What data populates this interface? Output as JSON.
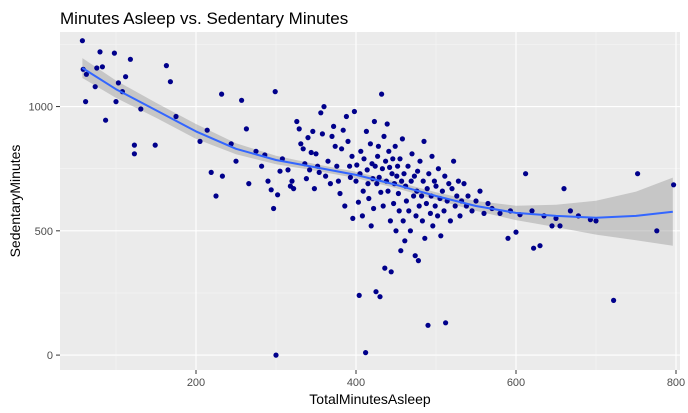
{
  "chart_data": {
    "type": "scatter",
    "title": "Minutes Asleep vs. Sedentary Minutes",
    "xlabel": "TotalMinutesAsleep",
    "ylabel": "SedentaryMinutes",
    "xlim": [
      30,
      805
    ],
    "ylim": [
      -60,
      1300
    ],
    "x_ticks": [
      200,
      400,
      600,
      800
    ],
    "y_ticks": [
      0,
      500,
      1000
    ],
    "x_tick_labels": [
      "200",
      "400",
      "600",
      "800"
    ],
    "y_tick_labels": [
      "0",
      "500",
      "1000"
    ],
    "grid": true,
    "legend": "none",
    "colors": {
      "panel_background": "#ebebeb",
      "grid_major": "#ffffff",
      "grid_minor": "#f5f5f5",
      "points": "#00008b",
      "smooth_line": "#3366ff",
      "confidence_band": "#999999",
      "tick_label": "#4d4d4d",
      "tick_mark": "#333333"
    },
    "smooth": {
      "method": "loess",
      "x": [
        58,
        100,
        150,
        200,
        250,
        300,
        350,
        400,
        450,
        500,
        550,
        600,
        650,
        700,
        750,
        796
      ],
      "y": [
        1155,
        1070,
        985,
        900,
        830,
        785,
        755,
        725,
        685,
        640,
        600,
        572,
        560,
        553,
        560,
        577
      ],
      "lower": [
        1115,
        1035,
        955,
        870,
        808,
        768,
        742,
        712,
        672,
        625,
        580,
        543,
        515,
        485,
        462,
        440
      ],
      "upper": [
        1195,
        1105,
        1015,
        930,
        852,
        802,
        768,
        738,
        698,
        655,
        620,
        601,
        605,
        621,
        658,
        714
      ]
    },
    "points": [
      [
        58,
        1265
      ],
      [
        59,
        1150
      ],
      [
        63,
        1130
      ],
      [
        62,
        1020
      ],
      [
        74,
        1080
      ],
      [
        76,
        1155
      ],
      [
        80,
        1220
      ],
      [
        83,
        1160
      ],
      [
        87,
        945
      ],
      [
        98,
        1215
      ],
      [
        103,
        1095
      ],
      [
        100,
        1020
      ],
      [
        108,
        1060
      ],
      [
        112,
        1120
      ],
      [
        118,
        1190
      ],
      [
        123,
        810
      ],
      [
        123,
        845
      ],
      [
        131,
        990
      ],
      [
        149,
        845
      ],
      [
        163,
        1165
      ],
      [
        168,
        1100
      ],
      [
        175,
        960
      ],
      [
        205,
        860
      ],
      [
        214,
        905
      ],
      [
        219,
        735
      ],
      [
        232,
        1050
      ],
      [
        225,
        640
      ],
      [
        233,
        720
      ],
      [
        244,
        850
      ],
      [
        250,
        780
      ],
      [
        257,
        1025
      ],
      [
        263,
        910
      ],
      [
        266,
        690
      ],
      [
        275,
        820
      ],
      [
        282,
        760
      ],
      [
        286,
        805
      ],
      [
        290,
        700
      ],
      [
        294,
        665
      ],
      [
        297,
        590
      ],
      [
        299,
        1060
      ],
      [
        302,
        645
      ],
      [
        305,
        740
      ],
      [
        308,
        790
      ],
      [
        300,
        0
      ],
      [
        315,
        745
      ],
      [
        318,
        680
      ],
      [
        320,
        700
      ],
      [
        322,
        670
      ],
      [
        326,
        940
      ],
      [
        329,
        910
      ],
      [
        331,
        850
      ],
      [
        334,
        830
      ],
      [
        336,
        770
      ],
      [
        338,
        710
      ],
      [
        340,
        875
      ],
      [
        342,
        745
      ],
      [
        344,
        815
      ],
      [
        346,
        900
      ],
      [
        348,
        670
      ],
      [
        350,
        810
      ],
      [
        352,
        760
      ],
      [
        354,
        735
      ],
      [
        356,
        975
      ],
      [
        358,
        890
      ],
      [
        360,
        1000
      ],
      [
        362,
        720
      ],
      [
        365,
        780
      ],
      [
        368,
        690
      ],
      [
        370,
        880
      ],
      [
        372,
        920
      ],
      [
        374,
        840
      ],
      [
        376,
        760
      ],
      [
        378,
        700
      ],
      [
        380,
        650
      ],
      [
        382,
        830
      ],
      [
        384,
        905
      ],
      [
        386,
        600
      ],
      [
        388,
        960
      ],
      [
        390,
        860
      ],
      [
        392,
        760
      ],
      [
        393,
        715
      ],
      [
        395,
        800
      ],
      [
        396,
        550
      ],
      [
        398,
        980
      ],
      [
        400,
        700
      ],
      [
        401,
        765
      ],
      [
        403,
        615
      ],
      [
        404,
        240
      ],
      [
        405,
        730
      ],
      [
        406,
        820
      ],
      [
        408,
        560
      ],
      [
        409,
        660
      ],
      [
        410,
        790
      ],
      [
        412,
        10
      ],
      [
        413,
        900
      ],
      [
        414,
        745
      ],
      [
        415,
        690
      ],
      [
        416,
        630
      ],
      [
        418,
        850
      ],
      [
        419,
        520
      ],
      [
        420,
        770
      ],
      [
        421,
        710
      ],
      [
        422,
        590
      ],
      [
        423,
        940
      ],
      [
        424,
        760
      ],
      [
        425,
        255
      ],
      [
        426,
        690
      ],
      [
        427,
        800
      ],
      [
        428,
        840
      ],
      [
        429,
        715
      ],
      [
        430,
        235
      ],
      [
        431,
        655
      ],
      [
        432,
        1050
      ],
      [
        433,
        750
      ],
      [
        434,
        600
      ],
      [
        435,
        880
      ],
      [
        436,
        350
      ],
      [
        437,
        780
      ],
      [
        438,
        700
      ],
      [
        439,
        930
      ],
      [
        440,
        660
      ],
      [
        441,
        820
      ],
      [
        442,
        755
      ],
      [
        443,
        540
      ],
      [
        444,
        335
      ],
      [
        445,
        730
      ],
      [
        446,
        790
      ],
      [
        447,
        610
      ],
      [
        448,
        690
      ],
      [
        449,
        840
      ],
      [
        450,
        500
      ],
      [
        451,
        720
      ],
      [
        452,
        760
      ],
      [
        453,
        650
      ],
      [
        454,
        580
      ],
      [
        455,
        790
      ],
      [
        456,
        420
      ],
      [
        457,
        700
      ],
      [
        458,
        870
      ],
      [
        459,
        540
      ],
      [
        460,
        730
      ],
      [
        461,
        460
      ],
      [
        462,
        680
      ],
      [
        463,
        620
      ],
      [
        465,
        760
      ],
      [
        466,
        580
      ],
      [
        468,
        500
      ],
      [
        469,
        700
      ],
      [
        470,
        810
      ],
      [
        472,
        640
      ],
      [
        473,
        720
      ],
      [
        474,
        400
      ],
      [
        475,
        560
      ],
      [
        476,
        660
      ],
      [
        477,
        740
      ],
      [
        478,
        380
      ],
      [
        479,
        600
      ],
      [
        480,
        780
      ],
      [
        482,
        640
      ],
      [
        483,
        540
      ],
      [
        484,
        700
      ],
      [
        485,
        860
      ],
      [
        486,
        470
      ],
      [
        488,
        610
      ],
      [
        489,
        670
      ],
      [
        490,
        120
      ],
      [
        491,
        730
      ],
      [
        493,
        570
      ],
      [
        494,
        640
      ],
      [
        495,
        800
      ],
      [
        496,
        520
      ],
      [
        498,
        700
      ],
      [
        499,
        600
      ],
      [
        500,
        680
      ],
      [
        502,
        560
      ],
      [
        503,
        750
      ],
      [
        505,
        630
      ],
      [
        506,
        480
      ],
      [
        508,
        660
      ],
      [
        510,
        580
      ],
      [
        511,
        720
      ],
      [
        512,
        130
      ],
      [
        514,
        620
      ],
      [
        516,
        690
      ],
      [
        518,
        540
      ],
      [
        520,
        670
      ],
      [
        522,
        780
      ],
      [
        524,
        600
      ],
      [
        526,
        640
      ],
      [
        528,
        700
      ],
      [
        530,
        560
      ],
      [
        532,
        620
      ],
      [
        535,
        690
      ],
      [
        538,
        600
      ],
      [
        540,
        640
      ],
      [
        545,
        580
      ],
      [
        550,
        620
      ],
      [
        555,
        660
      ],
      [
        560,
        570
      ],
      [
        565,
        610
      ],
      [
        570,
        590
      ],
      [
        580,
        570
      ],
      [
        590,
        470
      ],
      [
        593,
        580
      ],
      [
        600,
        495
      ],
      [
        605,
        565
      ],
      [
        612,
        730
      ],
      [
        620,
        580
      ],
      [
        622,
        430
      ],
      [
        630,
        440
      ],
      [
        635,
        560
      ],
      [
        645,
        520
      ],
      [
        650,
        550
      ],
      [
        655,
        520
      ],
      [
        660,
        670
      ],
      [
        668,
        580
      ],
      [
        678,
        560
      ],
      [
        693,
        545
      ],
      [
        700,
        540
      ],
      [
        722,
        220
      ],
      [
        752,
        730
      ],
      [
        776,
        500
      ],
      [
        797,
        685
      ]
    ]
  }
}
